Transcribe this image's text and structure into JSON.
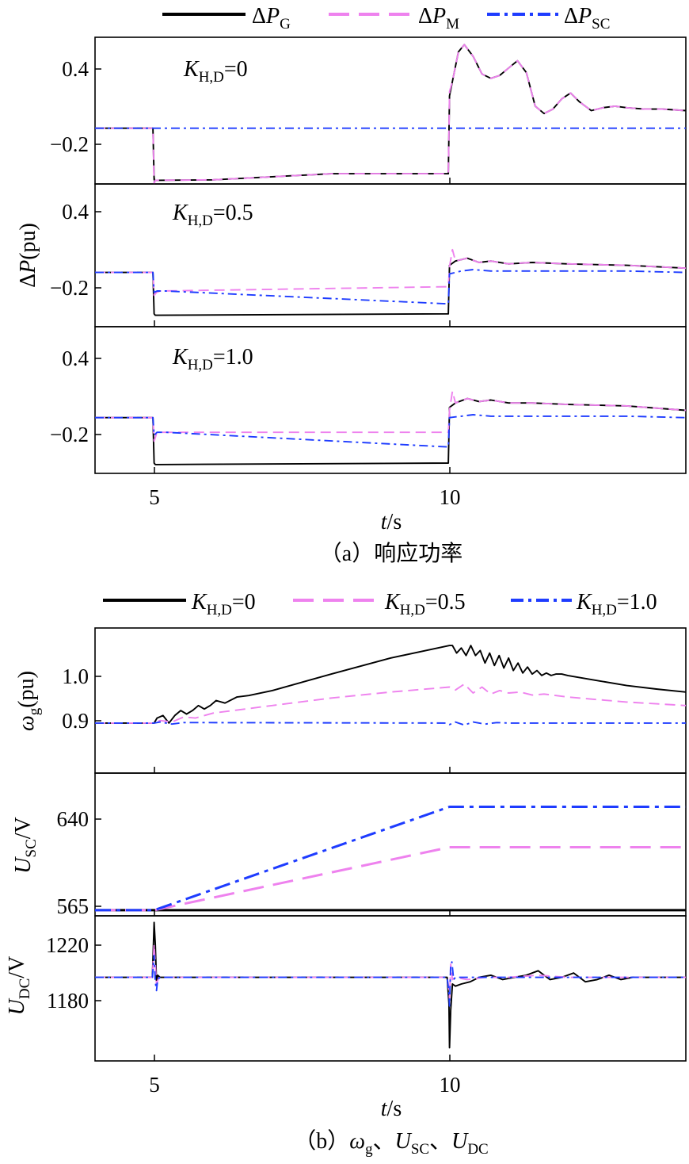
{
  "colors": {
    "black": "#000000",
    "pink": "#ee82ee",
    "blue": "#1e3cff"
  },
  "part_a": {
    "caption_prefix": "（a）",
    "caption_text": "响应功率",
    "ylabel_delta": "Δ",
    "ylabel_var": "P",
    "ylabel_unit": "(pu)",
    "xlabel_var": "t",
    "xlabel_unit": "/s",
    "legend": [
      {
        "delta": "Δ",
        "var": "P",
        "sub": "G",
        "color": "black",
        "style": "solid"
      },
      {
        "delta": "Δ",
        "var": "P",
        "sub": "M",
        "color": "pink",
        "style": "dashed"
      },
      {
        "delta": "Δ",
        "var": "P",
        "sub": "SC",
        "color": "blue",
        "style": "dashdot"
      }
    ],
    "panels": [
      {
        "label_var": "K",
        "label_sub": "H,D",
        "label_val": "=0"
      },
      {
        "label_var": "K",
        "label_sub": "H,D",
        "label_val": "=0.5"
      },
      {
        "label_var": "K",
        "label_sub": "H,D",
        "label_val": "=1.0"
      }
    ],
    "yticks": [
      "0.4",
      "−0.2"
    ],
    "xticks": [
      "5",
      "10"
    ]
  },
  "part_b": {
    "caption_prefix": "（b）",
    "caption_omega": "ω",
    "caption_omega_sub": "g",
    "caption_sep1": "、",
    "caption_u1": "U",
    "caption_u1_sub": "SC",
    "caption_sep2": "、",
    "caption_u2": "U",
    "caption_u2_sub": "DC",
    "xlabel_var": "t",
    "xlabel_unit": "/s",
    "legend": [
      {
        "var": "K",
        "sub": "H,D",
        "val": "=0",
        "color": "black",
        "style": "solid"
      },
      {
        "var": "K",
        "sub": "H,D",
        "val": "=0.5",
        "color": "pink",
        "style": "dashed"
      },
      {
        "var": "K",
        "sub": "H,D",
        "val": "=1.0",
        "color": "blue",
        "style": "dashdot"
      }
    ],
    "panels": [
      {
        "ylabel_var": "ω",
        "ylabel_sub": "g",
        "ylabel_unit": "(pu)",
        "yticks": [
          "1.0",
          "0.9"
        ]
      },
      {
        "ylabel_var": "U",
        "ylabel_sub": "SC",
        "ylabel_unit": "/V",
        "yticks": [
          "640",
          "565"
        ]
      },
      {
        "ylabel_var": "U",
        "ylabel_sub": "DC",
        "ylabel_unit": "/V",
        "yticks": [
          "1220",
          "1180"
        ]
      }
    ],
    "xticks": [
      "5",
      "10"
    ]
  },
  "chart_data": [
    {
      "type": "line",
      "panel": "a1",
      "xlim": [
        4,
        14
      ],
      "ylim": [
        -0.38,
        0.62
      ],
      "series": [
        {
          "name": "ΔPG",
          "color": "black",
          "style": "solid",
          "x": [
            4,
            4.98,
            5.0,
            5.02,
            6,
            8,
            9.98,
            10.0,
            10.05,
            10.15,
            10.25,
            10.4,
            10.55,
            10.7,
            10.85,
            11.0,
            11.15,
            11.3,
            11.45,
            11.6,
            11.75,
            11.9,
            12.05,
            12.2,
            12.4,
            12.6,
            12.8,
            13.0,
            13.3,
            13.6,
            14
          ],
          "y": [
            0.0,
            0.0,
            -0.35,
            -0.355,
            -0.352,
            -0.31,
            -0.31,
            0.22,
            0.32,
            0.52,
            0.57,
            0.49,
            0.37,
            0.34,
            0.36,
            0.41,
            0.46,
            0.38,
            0.15,
            0.1,
            0.13,
            0.2,
            0.24,
            0.18,
            0.12,
            0.14,
            0.15,
            0.14,
            0.13,
            0.13,
            0.12
          ]
        },
        {
          "name": "ΔPM",
          "color": "pink",
          "style": "dashed",
          "x": [
            4,
            4.98,
            5.0,
            5.02,
            6,
            8,
            9.98,
            10.0,
            10.05,
            10.15,
            10.25,
            10.4,
            10.55,
            10.7,
            10.85,
            11.0,
            11.15,
            11.3,
            11.45,
            11.6,
            11.75,
            11.9,
            12.05,
            12.2,
            12.4,
            12.6,
            12.8,
            13.0,
            13.3,
            13.6,
            14
          ],
          "y": [
            0.0,
            0.0,
            -0.38,
            -0.355,
            -0.352,
            -0.31,
            -0.31,
            0.25,
            0.32,
            0.52,
            0.57,
            0.49,
            0.37,
            0.34,
            0.36,
            0.41,
            0.46,
            0.38,
            0.15,
            0.1,
            0.13,
            0.2,
            0.24,
            0.18,
            0.12,
            0.14,
            0.15,
            0.14,
            0.13,
            0.13,
            0.12
          ]
        },
        {
          "name": "ΔPSC",
          "color": "blue",
          "style": "dashdot",
          "x": [
            4,
            14
          ],
          "y": [
            0.0,
            0.0
          ]
        }
      ]
    },
    {
      "type": "line",
      "panel": "a2",
      "xlim": [
        4,
        14
      ],
      "ylim": [
        -0.38,
        0.62
      ],
      "series": [
        {
          "name": "ΔPG",
          "color": "black",
          "style": "solid",
          "x": [
            4,
            4.98,
            5.0,
            5.02,
            9.98,
            10.0,
            10.1,
            10.3,
            10.5,
            10.7,
            11.0,
            11.4,
            12,
            13,
            14
          ],
          "y": [
            0.0,
            0.0,
            -0.29,
            -0.3,
            -0.29,
            0.05,
            0.08,
            0.1,
            0.07,
            0.08,
            0.06,
            0.07,
            0.06,
            0.05,
            0.03
          ]
        },
        {
          "name": "ΔPM",
          "color": "pink",
          "style": "dashed",
          "x": [
            4,
            4.98,
            5.0,
            5.04,
            5.1,
            9.98,
            10.0,
            10.05,
            10.1,
            10.3,
            10.5,
            10.7,
            11.0,
            11.4,
            12,
            13,
            14
          ],
          "y": [
            0.0,
            0.0,
            -0.16,
            -0.14,
            -0.13,
            -0.1,
            0.04,
            0.16,
            0.08,
            0.1,
            0.07,
            0.08,
            0.06,
            0.07,
            0.06,
            0.05,
            0.03
          ]
        },
        {
          "name": "ΔPSC",
          "color": "blue",
          "style": "dashdot",
          "x": [
            4,
            4.98,
            5.0,
            5.05,
            5.2,
            9.98,
            10.0,
            10.2,
            10.4,
            10.7,
            11.0,
            12,
            13,
            14
          ],
          "y": [
            0.0,
            0.0,
            -0.14,
            -0.13,
            -0.13,
            -0.22,
            -0.01,
            0.01,
            0.02,
            0.01,
            0.01,
            0.01,
            0.01,
            0.0
          ]
        }
      ]
    },
    {
      "type": "line",
      "panel": "a3",
      "xlim": [
        4,
        14
      ],
      "ylim": [
        -0.38,
        0.62
      ],
      "series": [
        {
          "name": "ΔPG",
          "color": "black",
          "style": "solid",
          "x": [
            4,
            4.98,
            5.0,
            5.02,
            9.98,
            10.0,
            10.1,
            10.3,
            10.5,
            10.7,
            11.0,
            11.4,
            12,
            13,
            14
          ],
          "y": [
            0.0,
            0.0,
            -0.31,
            -0.32,
            -0.31,
            0.07,
            0.1,
            0.13,
            0.11,
            0.12,
            0.1,
            0.1,
            0.09,
            0.08,
            0.05
          ]
        },
        {
          "name": "ΔPM",
          "color": "pink",
          "style": "dashed",
          "x": [
            4,
            4.98,
            5.0,
            5.04,
            5.1,
            9.98,
            10.0,
            10.05,
            10.1,
            10.3,
            10.5,
            10.7,
            11.0,
            11.4,
            12,
            13,
            14
          ],
          "y": [
            0.0,
            0.0,
            -0.16,
            -0.11,
            -0.1,
            -0.1,
            0.05,
            0.18,
            0.1,
            0.13,
            0.11,
            0.12,
            0.1,
            0.1,
            0.09,
            0.08,
            0.05
          ]
        },
        {
          "name": "ΔPSC",
          "color": "blue",
          "style": "dashdot",
          "x": [
            4,
            4.98,
            5.0,
            5.05,
            5.2,
            9.98,
            10.0,
            10.2,
            10.4,
            10.7,
            11.0,
            12,
            13,
            14
          ],
          "y": [
            0.0,
            0.0,
            -0.12,
            -0.1,
            -0.1,
            -0.2,
            -0.0,
            0.01,
            0.02,
            0.01,
            0.01,
            0.01,
            0.01,
            0.0
          ]
        }
      ]
    },
    {
      "type": "line",
      "panel": "b1",
      "xlim": [
        4,
        14
      ],
      "ylim": [
        0.8,
        1.09
      ],
      "series": [
        {
          "name": "KH,D=0",
          "color": "black",
          "style": "solid",
          "x": [
            4,
            5.0,
            5.05,
            5.15,
            5.25,
            5.35,
            5.45,
            5.55,
            5.65,
            5.75,
            5.85,
            5.95,
            6.05,
            6.2,
            6.4,
            6.6,
            7,
            8,
            9,
            10.0,
            10.05,
            10.12,
            10.2,
            10.28,
            10.36,
            10.44,
            10.52,
            10.6,
            10.68,
            10.76,
            10.84,
            10.92,
            11.0,
            11.08,
            11.16,
            11.24,
            11.32,
            11.4,
            11.48,
            11.56,
            11.64,
            11.72,
            11.8,
            11.9,
            12,
            12.5,
            13,
            13.5,
            14
          ],
          "y": [
            0.9,
            0.9,
            0.91,
            0.915,
            0.9,
            0.915,
            0.925,
            0.918,
            0.925,
            0.935,
            0.928,
            0.935,
            0.945,
            0.94,
            0.952,
            0.955,
            0.965,
            0.998,
            1.03,
            1.055,
            1.055,
            1.04,
            1.05,
            1.035,
            1.055,
            1.035,
            1.045,
            1.02,
            1.04,
            1.015,
            1.035,
            1.01,
            1.03,
            1.005,
            1.02,
            1.0,
            1.012,
            0.998,
            1.005,
            0.995,
            1.0,
            0.995,
            0.998,
            0.998,
            0.995,
            0.985,
            0.975,
            0.968,
            0.962
          ]
        },
        {
          "name": "KH,D=0.5",
          "color": "pink",
          "style": "dashed",
          "x": [
            4,
            5.0,
            5.1,
            5.3,
            5.5,
            5.7,
            6,
            7,
            8,
            9,
            10.0,
            10.1,
            10.25,
            10.4,
            10.55,
            10.7,
            10.85,
            11,
            11.2,
            11.4,
            11.6,
            12,
            13,
            14
          ],
          "y": [
            0.9,
            0.9,
            0.905,
            0.902,
            0.912,
            0.91,
            0.92,
            0.935,
            0.95,
            0.962,
            0.972,
            0.966,
            0.978,
            0.96,
            0.972,
            0.958,
            0.965,
            0.96,
            0.962,
            0.956,
            0.958,
            0.952,
            0.942,
            0.935
          ]
        },
        {
          "name": "KH,D=1.0",
          "color": "blue",
          "style": "dashdot",
          "x": [
            4,
            5.0,
            5.1,
            5.3,
            5.5,
            9.95,
            10.0,
            10.1,
            10.25,
            10.4,
            10.6,
            10.8,
            11,
            12,
            14
          ],
          "y": [
            0.9,
            0.9,
            0.902,
            0.898,
            0.901,
            0.9,
            0.897,
            0.902,
            0.896,
            0.902,
            0.898,
            0.901,
            0.9,
            0.9,
            0.9
          ]
        }
      ]
    },
    {
      "type": "line",
      "panel": "b2",
      "xlim": [
        4,
        14
      ],
      "ylim": [
        560,
        687
      ],
      "series": [
        {
          "name": "KH,D=0",
          "color": "black",
          "style": "solid",
          "x": [
            4,
            14
          ],
          "y": [
            565,
            565
          ]
        },
        {
          "name": "KH,D=0.5",
          "color": "pink",
          "style": "dashed",
          "x": [
            4,
            5.0,
            10.0,
            14
          ],
          "y": [
            565,
            565,
            621,
            621
          ]
        },
        {
          "name": "KH,D=1.0",
          "color": "blue",
          "style": "dashdot",
          "x": [
            4,
            5.0,
            10.0,
            14
          ],
          "y": [
            565,
            565,
            657,
            657
          ]
        }
      ]
    },
    {
      "type": "line",
      "panel": "b3",
      "xlim": [
        4,
        14
      ],
      "ylim": [
        1162,
        1228
      ],
      "series": [
        {
          "name": "KH,D=0",
          "color": "black",
          "style": "solid",
          "x": [
            4,
            4.97,
            5.0,
            5.02,
            5.04,
            5.06,
            5.1,
            9.96,
            9.99,
            10.0,
            10.02,
            10.05,
            10.1,
            10.2,
            10.35,
            10.5,
            10.7,
            10.9,
            11.1,
            11.3,
            11.5,
            11.7,
            11.9,
            12.1,
            12.3,
            12.5,
            12.7,
            12.9,
            13.1,
            13.3,
            14
          ],
          "y": [
            1200,
            1200,
            1225,
            1215,
            1198,
            1201,
            1200,
            1200,
            1188,
            1168,
            1185,
            1197,
            1196,
            1197,
            1198,
            1200,
            1201,
            1199,
            1200,
            1201,
            1203,
            1199,
            1200,
            1202,
            1198,
            1199,
            1201,
            1199,
            1200,
            1200,
            1200
          ]
        },
        {
          "name": "KH,D=0.5",
          "color": "pink",
          "style": "dashed",
          "x": [
            4,
            4.97,
            5.0,
            5.02,
            5.04,
            5.08,
            9.96,
            9.99,
            10.0,
            10.02,
            10.05,
            10.1,
            10.3,
            10.6,
            11,
            11.5,
            12,
            14
          ],
          "y": [
            1200,
            1200,
            1215,
            1206,
            1197,
            1200,
            1200,
            1194,
            1190,
            1206,
            1199,
            1200,
            1199,
            1200,
            1200,
            1201,
            1200,
            1200
          ]
        },
        {
          "name": "KH,D=1.0",
          "color": "blue",
          "style": "dashdot",
          "x": [
            4,
            4.97,
            5.0,
            5.02,
            5.04,
            5.06,
            5.1,
            9.96,
            9.99,
            10.0,
            10.02,
            10.04,
            10.07,
            10.1,
            10.4,
            14
          ],
          "y": [
            1200,
            1200,
            1210,
            1198,
            1194,
            1199,
            1200,
            1200,
            1193,
            1187,
            1206,
            1207,
            1199,
            1200,
            1200,
            1200
          ]
        }
      ]
    }
  ]
}
